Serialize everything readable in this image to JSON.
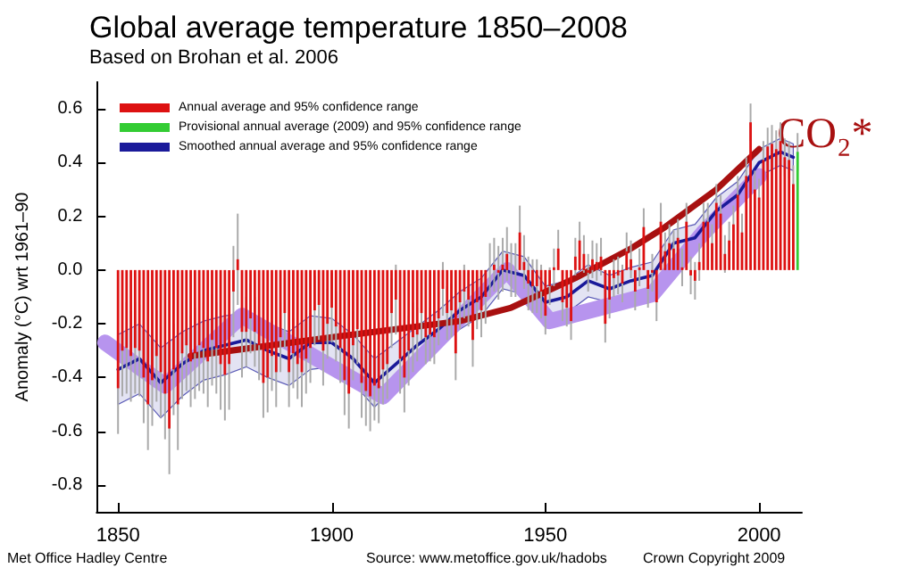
{
  "chart_data": {
    "type": "bar",
    "title": "Global average temperature 1850–2008",
    "subtitle": "Based on Brohan et al. 2006",
    "ylabel": "Anomaly (°C) wrt 1961–90",
    "xlim": [
      1845,
      2010
    ],
    "xticks": [
      1850,
      1900,
      1950,
      2000
    ],
    "ylim": [
      -0.9,
      0.7
    ],
    "yticks": [
      -0.8,
      -0.6,
      -0.4,
      -0.2,
      {
        "value": 0,
        "label": "0.0"
      },
      0.2,
      0.4,
      0.6
    ],
    "grid": false,
    "legend": "top left",
    "annotations": [
      "Met Office Hadley Centre",
      "Source: www.metoffice.gov.uk/hadobs",
      "Crown Copyright 2009"
    ],
    "series": [
      {
        "name": "Annual average and 95% confidence range",
        "color": "#dd1111",
        "x": [
          1850,
          1851,
          1852,
          1853,
          1854,
          1855,
          1856,
          1857,
          1858,
          1859,
          1860,
          1861,
          1862,
          1863,
          1864,
          1865,
          1866,
          1867,
          1868,
          1869,
          1870,
          1871,
          1872,
          1873,
          1874,
          1875,
          1876,
          1877,
          1878,
          1879,
          1880,
          1881,
          1882,
          1883,
          1884,
          1885,
          1886,
          1887,
          1888,
          1889,
          1890,
          1891,
          1892,
          1893,
          1894,
          1895,
          1896,
          1897,
          1898,
          1899,
          1900,
          1901,
          1902,
          1903,
          1904,
          1905,
          1906,
          1907,
          1908,
          1909,
          1910,
          1911,
          1912,
          1913,
          1914,
          1915,
          1916,
          1917,
          1918,
          1919,
          1920,
          1921,
          1922,
          1923,
          1924,
          1925,
          1926,
          1927,
          1928,
          1929,
          1930,
          1931,
          1932,
          1933,
          1934,
          1935,
          1936,
          1937,
          1938,
          1939,
          1940,
          1941,
          1942,
          1943,
          1944,
          1945,
          1946,
          1947,
          1948,
          1949,
          1950,
          1951,
          1952,
          1953,
          1954,
          1955,
          1956,
          1957,
          1958,
          1959,
          1960,
          1961,
          1962,
          1963,
          1964,
          1965,
          1966,
          1967,
          1968,
          1969,
          1970,
          1971,
          1972,
          1973,
          1974,
          1975,
          1976,
          1977,
          1978,
          1979,
          1980,
          1981,
          1982,
          1983,
          1984,
          1985,
          1986,
          1987,
          1988,
          1989,
          1990,
          1991,
          1992,
          1993,
          1994,
          1995,
          1996,
          1997,
          1998,
          1999,
          2000,
          2001,
          2002,
          2003,
          2004,
          2005,
          2006,
          2007,
          2008
        ],
        "values": [
          -0.44,
          -0.3,
          -0.29,
          -0.32,
          -0.29,
          -0.3,
          -0.4,
          -0.5,
          -0.41,
          -0.32,
          -0.38,
          -0.46,
          -0.59,
          -0.37,
          -0.5,
          -0.31,
          -0.28,
          -0.34,
          -0.31,
          -0.28,
          -0.29,
          -0.34,
          -0.26,
          -0.29,
          -0.35,
          -0.39,
          -0.35,
          -0.08,
          0.04,
          -0.23,
          -0.23,
          -0.18,
          -0.23,
          -0.28,
          -0.42,
          -0.4,
          -0.32,
          -0.38,
          -0.25,
          -0.16,
          -0.38,
          -0.31,
          -0.35,
          -0.38,
          -0.33,
          -0.29,
          -0.15,
          -0.13,
          -0.3,
          -0.2,
          -0.14,
          -0.21,
          -0.29,
          -0.41,
          -0.46,
          -0.28,
          -0.22,
          -0.42,
          -0.45,
          -0.47,
          -0.43,
          -0.44,
          -0.37,
          -0.35,
          -0.16,
          -0.11,
          -0.33,
          -0.4,
          -0.3,
          -0.25,
          -0.24,
          -0.16,
          -0.25,
          -0.24,
          -0.25,
          -0.18,
          -0.07,
          -0.16,
          -0.15,
          -0.31,
          -0.12,
          -0.08,
          -0.11,
          -0.26,
          -0.12,
          -0.15,
          -0.1,
          0.0,
          0.02,
          -0.01,
          0.02,
          0.06,
          0.0,
          0.0,
          0.14,
          0.03,
          -0.05,
          -0.06,
          -0.06,
          -0.08,
          -0.17,
          -0.06,
          0.01,
          0.08,
          -0.12,
          -0.14,
          -0.19,
          0.05,
          0.11,
          0.06,
          -0.01,
          0.04,
          0.03,
          0.05,
          -0.2,
          -0.11,
          -0.03,
          -0.02,
          -0.05,
          0.07,
          0.04,
          -0.08,
          0.01,
          0.16,
          -0.07,
          -0.01,
          -0.12,
          0.18,
          0.07,
          0.1,
          0.08,
          0.12,
          0.01,
          0.18,
          -0.02,
          -0.04,
          0.03,
          0.18,
          0.18,
          0.1,
          0.25,
          0.21,
          0.06,
          0.11,
          0.17,
          0.28,
          0.14,
          0.35,
          0.55,
          0.3,
          0.27,
          0.41,
          0.46,
          0.47,
          0.45,
          0.48,
          0.42,
          0.41,
          0.32
        ],
        "errors": [
          0.17,
          0.17,
          0.17,
          0.17,
          0.17,
          0.17,
          0.17,
          0.17,
          0.17,
          0.17,
          0.17,
          0.17,
          0.17,
          0.17,
          0.17,
          0.17,
          0.17,
          0.17,
          0.17,
          0.17,
          0.17,
          0.17,
          0.17,
          0.17,
          0.17,
          0.17,
          0.17,
          0.17,
          0.17,
          0.17,
          0.13,
          0.13,
          0.13,
          0.13,
          0.13,
          0.13,
          0.13,
          0.13,
          0.13,
          0.13,
          0.13,
          0.13,
          0.13,
          0.13,
          0.13,
          0.13,
          0.13,
          0.13,
          0.13,
          0.13,
          0.13,
          0.13,
          0.13,
          0.13,
          0.13,
          0.13,
          0.13,
          0.13,
          0.13,
          0.13,
          0.13,
          0.13,
          0.13,
          0.13,
          0.13,
          0.13,
          0.13,
          0.13,
          0.13,
          0.13,
          0.1,
          0.1,
          0.1,
          0.1,
          0.1,
          0.1,
          0.1,
          0.1,
          0.1,
          0.1,
          0.1,
          0.1,
          0.1,
          0.1,
          0.1,
          0.1,
          0.1,
          0.1,
          0.1,
          0.1,
          0.1,
          0.1,
          0.1,
          0.1,
          0.1,
          0.1,
          0.1,
          0.1,
          0.1,
          0.1,
          0.07,
          0.07,
          0.07,
          0.07,
          0.07,
          0.07,
          0.07,
          0.07,
          0.07,
          0.07,
          0.07,
          0.07,
          0.07,
          0.07,
          0.07,
          0.07,
          0.07,
          0.07,
          0.07,
          0.07,
          0.07,
          0.07,
          0.07,
          0.07,
          0.07,
          0.07,
          0.07,
          0.07,
          0.07,
          0.07,
          0.07,
          0.07,
          0.07,
          0.07,
          0.07,
          0.07,
          0.07,
          0.07,
          0.07,
          0.07,
          0.07,
          0.07,
          0.07,
          0.07,
          0.07,
          0.07,
          0.07,
          0.07,
          0.07,
          0.07,
          0.07,
          0.07,
          0.07,
          0.07,
          0.07,
          0.07,
          0.07,
          0.07,
          0.07
        ]
      },
      {
        "name": "Provisional annual average (2009) and 95% confidence range",
        "color": "#33cc33",
        "x": [
          2009
        ],
        "values": [
          0.44
        ],
        "errors": [
          0.07
        ]
      },
      {
        "name": "Smoothed annual average and 95% confidence range",
        "type": "line",
        "color": "#1a1a9a",
        "x": [
          1850,
          1855,
          1860,
          1865,
          1870,
          1875,
          1880,
          1885,
          1890,
          1895,
          1900,
          1905,
          1910,
          1915,
          1920,
          1925,
          1930,
          1935,
          1940,
          1945,
          1950,
          1955,
          1960,
          1965,
          1970,
          1975,
          1980,
          1985,
          1990,
          1995,
          2000,
          2005,
          2008
        ],
        "values": [
          -0.37,
          -0.33,
          -0.42,
          -0.35,
          -0.3,
          -0.28,
          -0.26,
          -0.3,
          -0.33,
          -0.27,
          -0.27,
          -0.33,
          -0.42,
          -0.35,
          -0.28,
          -0.22,
          -0.15,
          -0.1,
          0.0,
          -0.02,
          -0.12,
          -0.1,
          -0.04,
          -0.07,
          -0.04,
          -0.02,
          0.1,
          0.12,
          0.22,
          0.28,
          0.4,
          0.44,
          0.42
        ],
        "lower": [
          -0.5,
          -0.46,
          -0.55,
          -0.47,
          -0.41,
          -0.39,
          -0.36,
          -0.4,
          -0.43,
          -0.37,
          -0.36,
          -0.42,
          -0.51,
          -0.43,
          -0.35,
          -0.29,
          -0.22,
          -0.17,
          -0.07,
          -0.09,
          -0.18,
          -0.16,
          -0.1,
          -0.12,
          -0.09,
          -0.07,
          0.05,
          0.07,
          0.17,
          0.23,
          0.35,
          0.39,
          0.37
        ],
        "upper": [
          -0.24,
          -0.2,
          -0.29,
          -0.23,
          -0.19,
          -0.17,
          -0.16,
          -0.2,
          -0.23,
          -0.17,
          -0.18,
          -0.24,
          -0.33,
          -0.27,
          -0.21,
          -0.15,
          -0.08,
          -0.03,
          0.07,
          0.05,
          -0.06,
          -0.04,
          0.02,
          -0.02,
          0.01,
          0.03,
          0.15,
          0.17,
          0.27,
          0.33,
          0.45,
          0.49,
          0.47
        ]
      },
      {
        "type": "line",
        "color": "#b794ee",
        "x": [
          1847,
          1861,
          1879,
          1912,
          1941,
          1951,
          1975,
          1987,
          2000
        ],
        "values": [
          -0.27,
          -0.43,
          -0.17,
          -0.47,
          0.0,
          -0.19,
          -0.09,
          0.14,
          0.35
        ]
      },
      {
        "name": "CO₂*",
        "type": "line",
        "color": "#a81010",
        "x": [
          1867,
          1900,
          1930,
          1942,
          1957,
          1970,
          1978,
          1990,
          2000
        ],
        "values": [
          -0.32,
          -0.25,
          -0.19,
          -0.14,
          -0.03,
          0.08,
          0.16,
          0.3,
          0.45
        ]
      }
    ]
  }
}
